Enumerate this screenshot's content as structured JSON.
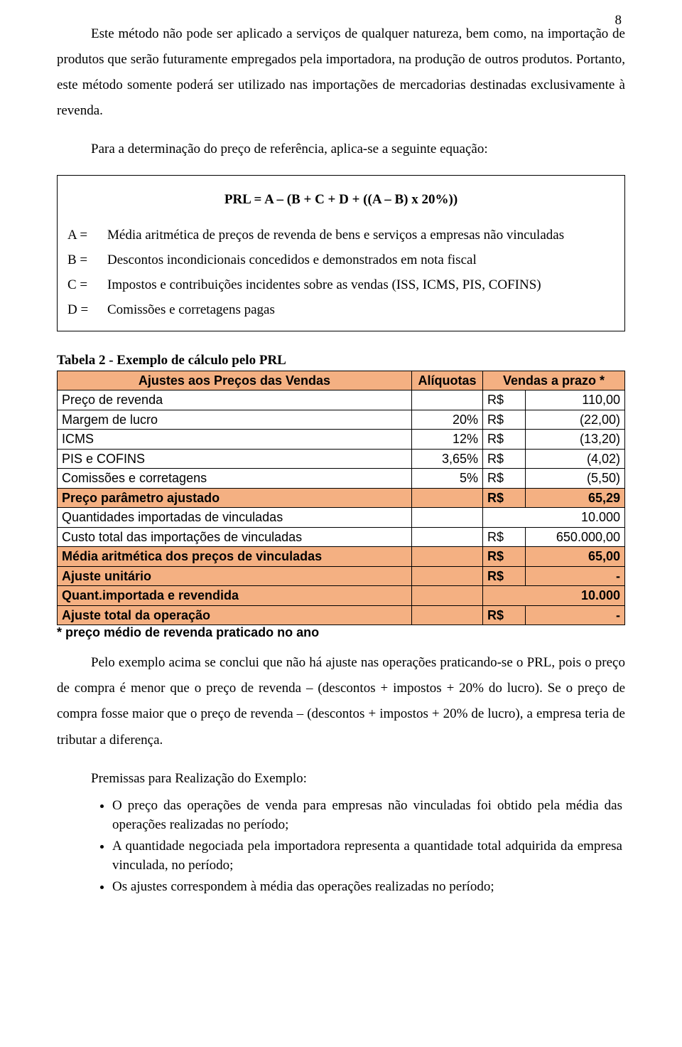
{
  "page_number": "8",
  "para1": "Este método não pode ser aplicado a serviços de qualquer natureza, bem como, na importação de produtos que serão futuramente empregados pela importadora, na produção de outros produtos. Portanto, este método somente poderá ser utilizado nas importações de mercadorias destinadas exclusivamente à revenda.",
  "para2": "Para a determinação do preço de referência, aplica-se a seguinte equação:",
  "formula": "PRL = A – (B + C + D + ((A – B) x 20%))",
  "defs": {
    "a_sym": "A =",
    "a_txt": "Média aritmética de preços de revenda de bens e serviços a empresas não vinculadas",
    "b_sym": "B =",
    "b_txt": "Descontos incondicionais concedidos e demonstrados em nota fiscal",
    "c_sym": "C =",
    "c_txt": "Impostos e contribuições incidentes sobre as vendas (ISS, ICMS, PIS, COFINS)",
    "d_sym": "D =",
    "d_txt": "Comissões e corretagens pagas"
  },
  "table": {
    "title": "Tabela 2 - Exemplo de cálculo pelo PRL",
    "head": {
      "c1": "Ajustes aos Preços das Vendas",
      "c2": "Alíquotas",
      "c3": "Vendas a prazo *"
    },
    "rows": [
      {
        "label": "Preço de revenda",
        "aliq": "",
        "cur": "R$",
        "val": "110,00",
        "hl": false
      },
      {
        "label": "Margem de lucro",
        "aliq": "20%",
        "cur": "R$",
        "val": "(22,00)",
        "hl": false
      },
      {
        "label": "ICMS",
        "aliq": "12%",
        "cur": "R$",
        "val": "(13,20)",
        "hl": false
      },
      {
        "label": "PIS e COFINS",
        "aliq": "3,65%",
        "cur": "R$",
        "val": "(4,02)",
        "hl": false
      },
      {
        "label": "Comissões e corretagens",
        "aliq": "5%",
        "cur": "R$",
        "val": "(5,50)",
        "hl": false
      },
      {
        "label": "Preço parâmetro ajustado",
        "aliq": "",
        "cur": "R$",
        "val": "65,29",
        "hl": true
      },
      {
        "label": "Quantidades importadas de vinculadas",
        "aliq": "",
        "cur": "",
        "val": "10.000",
        "hl": false
      },
      {
        "label": "Custo total das importações de vinculadas",
        "aliq": "",
        "cur": "R$",
        "val": "650.000,00",
        "hl": false
      },
      {
        "label": "Média aritmética dos preços de vinculadas",
        "aliq": "",
        "cur": "R$",
        "val": "65,00",
        "hl": true
      },
      {
        "label": "Ajuste unitário",
        "aliq": "",
        "cur": "R$",
        "val": "-",
        "hl": true
      },
      {
        "label": "Quant.importada e revendida",
        "aliq": "",
        "cur": "",
        "val": "10.000",
        "hl": true
      },
      {
        "label": "Ajuste total da operação",
        "aliq": "",
        "cur": "R$",
        "val": "-",
        "hl": true
      }
    ],
    "footnote": "* preço médio de revenda praticado no ano"
  },
  "para3": "Pelo exemplo acima se conclui que não há ajuste nas operações praticando-se o PRL, pois o preço de compra é menor que o preço de revenda – (descontos + impostos + 20% do lucro). Se o preço de compra fosse maior que o preço de revenda – (descontos + impostos + 20% de lucro), a empresa teria de tributar a diferença.",
  "premises_title": "Premissas para Realização do Exemplo:",
  "bullets": [
    "O preço das operações de venda para empresas não vinculadas foi obtido pela média das operações realizadas no período;",
    "A quantidade negociada pela importadora representa a quantidade total adquirida da empresa vinculada, no período;",
    "Os ajustes correspondem à média das operações realizadas no período;"
  ]
}
